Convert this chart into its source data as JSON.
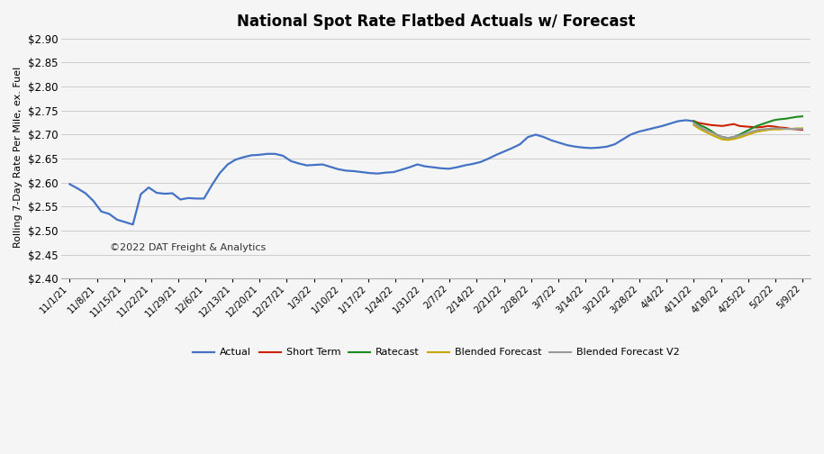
{
  "title": "National Spot Rate Flatbed Actuals w/ Forecast",
  "ylabel": "Rolling 7-Day Rate Per Mile, ex. Fuel",
  "ylim": [
    2.4,
    2.905
  ],
  "yticks": [
    2.4,
    2.45,
    2.5,
    2.55,
    2.6,
    2.65,
    2.7,
    2.75,
    2.8,
    2.85,
    2.9
  ],
  "copyright_text": "©2022 DAT Freight & Analytics",
  "background_color": "#f5f5f5",
  "grid_color": "#cccccc",
  "x_labels": [
    "11/1/21",
    "11/8/21",
    "11/15/21",
    "11/22/21",
    "11/29/21",
    "12/6/21",
    "12/13/21",
    "12/20/21",
    "12/27/21",
    "1/3/22",
    "1/10/22",
    "1/17/22",
    "1/24/22",
    "1/31/22",
    "2/7/22",
    "2/14/22",
    "2/21/22",
    "2/28/22",
    "3/7/22",
    "3/14/22",
    "3/21/22",
    "3/28/22",
    "4/4/22",
    "4/11/22",
    "4/18/22",
    "4/25/22",
    "5/2/22",
    "5/9/22"
  ],
  "actual_y": [
    2.597,
    2.588,
    2.578,
    2.562,
    2.54,
    2.535,
    2.523,
    2.518,
    2.513,
    2.576,
    2.59,
    2.579,
    2.577,
    2.578,
    2.565,
    2.568,
    2.567,
    2.567,
    2.595,
    2.62,
    2.638,
    2.648,
    2.653,
    2.657,
    2.658,
    2.66,
    2.66,
    2.656,
    2.645,
    2.64,
    2.636,
    2.637,
    2.638,
    2.633,
    2.628,
    2.625,
    2.624,
    2.622,
    2.62,
    2.619,
    2.621,
    2.622,
    2.627,
    2.632,
    2.638,
    2.634,
    2.632,
    2.63,
    2.629,
    2.632,
    2.636,
    2.639,
    2.643,
    2.65,
    2.658,
    2.665,
    2.672,
    2.68,
    2.695,
    2.7,
    2.695,
    2.688,
    2.683,
    2.678,
    2.675,
    2.673,
    2.672,
    2.673,
    2.675,
    2.68,
    2.69,
    2.7,
    2.706,
    2.71,
    2.714,
    2.718,
    2.723,
    2.728,
    2.73,
    2.728
  ],
  "short_term_y": [
    2.728,
    2.724,
    2.722,
    2.72,
    2.719,
    2.718,
    2.72,
    2.722,
    2.718,
    2.717,
    2.716,
    2.715,
    2.716,
    2.718,
    2.717,
    2.715,
    2.714,
    2.712,
    2.711,
    2.71
  ],
  "ratecast_y": [
    2.728,
    2.72,
    2.715,
    2.708,
    2.7,
    2.695,
    2.693,
    2.695,
    2.7,
    2.706,
    2.712,
    2.718,
    2.722,
    2.726,
    2.73,
    2.732,
    2.733,
    2.735,
    2.737,
    2.738
  ],
  "blended_y": [
    2.72,
    2.712,
    2.706,
    2.7,
    2.695,
    2.69,
    2.689,
    2.691,
    2.694,
    2.698,
    2.702,
    2.706,
    2.708,
    2.71,
    2.711,
    2.711,
    2.712,
    2.712,
    2.713,
    2.713
  ],
  "blended_v2_y": [
    2.723,
    2.716,
    2.71,
    2.705,
    2.7,
    2.695,
    2.693,
    2.695,
    2.698,
    2.702,
    2.706,
    2.709,
    2.711,
    2.712,
    2.713,
    2.713,
    2.712,
    2.712,
    2.712,
    2.712
  ],
  "actual_color": "#4472C4",
  "short_term_color": "#CC2200",
  "ratecast_color": "#1E8B1E",
  "blended_color": "#C8A800",
  "blended_v2_color": "#999999",
  "legend_labels": [
    "Actual",
    "Short Term",
    "Ratecast",
    "Blended Forecast",
    "Blended Forecast V2"
  ]
}
